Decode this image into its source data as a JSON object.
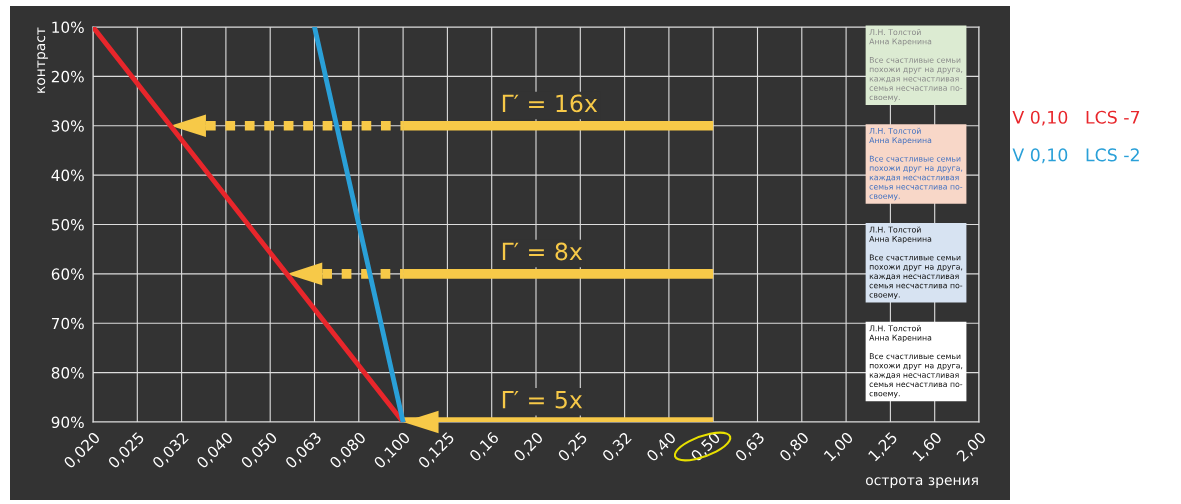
{
  "chart_data": {
    "type": "line",
    "xlabel": "острота зрения",
    "ylabel": "контраст",
    "categories": [
      "0,020",
      "0,025",
      "0,032",
      "0,040",
      "0,050",
      "0,063",
      "0,080",
      "0,100",
      "0,125",
      "0,16",
      "0,20",
      "0,25",
      "0,32",
      "0,40",
      "0,50",
      "0,63",
      "0,80",
      "1,00",
      "1,25",
      "1,60",
      "2,00"
    ],
    "series": [
      {
        "name": "V 0,10   LCS -7",
        "color": "#e8262b",
        "x": [
          "0,020",
          "0,100"
        ],
        "values": [
          10,
          90
        ]
      },
      {
        "name": "V 0,10   LCS -2",
        "color": "#2aa0d8",
        "x": [
          "0,063",
          "0,100"
        ],
        "values": [
          10,
          90
        ]
      }
    ],
    "ylim": [
      90,
      10
    ],
    "yticks": [
      {
        "value": 10,
        "label": "10%"
      },
      {
        "value": 20,
        "label": "20%"
      },
      {
        "value": 30,
        "label": "30%"
      },
      {
        "value": 40,
        "label": "40%"
      },
      {
        "value": 50,
        "label": "50%"
      },
      {
        "value": 60,
        "label": "60%"
      },
      {
        "value": 70,
        "label": "70%"
      },
      {
        "value": 80,
        "label": "80%"
      },
      {
        "value": 90,
        "label": "90%"
      }
    ],
    "grid": true,
    "legend": "right",
    "marker": "none",
    "line_style": "solid",
    "annotations": [
      "Γ′ = 16x",
      "Γ′ = 8x",
      "Γ′ = 5x",
      "Л.Н. Толстой\nАнна Каренина\n\nВсе счастливые семьи\nпохожи друг на друга,\nкаждая несчастливая\nсемья несчастлива по-\nсвоему.",
      "Л.Н. Толстой\nАнна Каренина\n\nВсе счастливые семьи\nпохожи друг на друга,\nкаждая несчастливая\nсемья несчастлива по-\nсвоему.",
      "Л.Н. Толстой\nАнна Каренина\n\nВсе счастливые семьи\nпохожи друг на друга,\nкаждая несчастливая\nсемья несчастлива по-\nсвоему.",
      "Л.Н. Толстой\nАнна Каренина\n\nВсе счастливые семьи\nпохожи друг на друга,\nкаждая несчастливая\nсемья несчастлива по-\nсвоему."
    ]
  }
}
